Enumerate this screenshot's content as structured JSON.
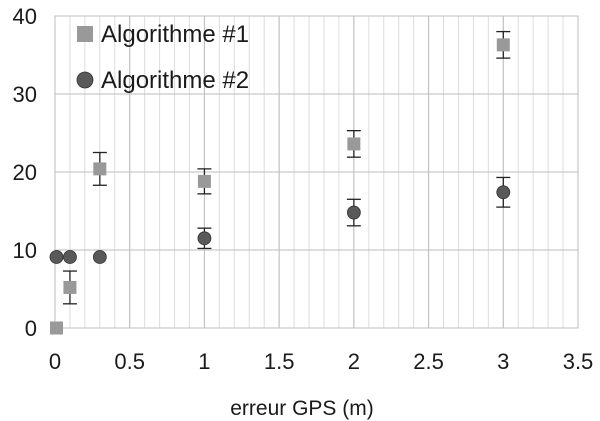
{
  "chart_data": {
    "type": "scatter",
    "title": "",
    "xlabel": "erreur GPS (m)",
    "ylabel": "",
    "xlim": [
      0,
      3.5
    ],
    "ylim": [
      0,
      40
    ],
    "x_ticks": [
      "0",
      "0.5",
      "1",
      "1.5",
      "2",
      "2.5",
      "3",
      "3.5"
    ],
    "y_ticks": [
      "0",
      "10",
      "20",
      "30",
      "40"
    ],
    "x_major_step": 0.5,
    "x_minor_step": 0.1,
    "y_major_step": 10,
    "grid": true,
    "legend_position": "top-left",
    "series": [
      {
        "name": "Algorithme #1",
        "marker": "square",
        "color": "#999999",
        "points": [
          {
            "x": 0.01,
            "y": 0,
            "err": null
          },
          {
            "x": 0.1,
            "y": 5.2,
            "err": 2.1
          },
          {
            "x": 0.3,
            "y": 20.4,
            "err": 2.1
          },
          {
            "x": 1,
            "y": 18.8,
            "err": 1.6
          },
          {
            "x": 2,
            "y": 23.6,
            "err": 1.7
          },
          {
            "x": 3,
            "y": 36.3,
            "err": 1.7
          }
        ]
      },
      {
        "name": "Algorithme #2",
        "marker": "circle",
        "color": "#595959",
        "points": [
          {
            "x": 0.01,
            "y": 9.1,
            "err": null
          },
          {
            "x": 0.1,
            "y": 9.1,
            "err": null
          },
          {
            "x": 0.3,
            "y": 9.1,
            "err": null
          },
          {
            "x": 1,
            "y": 11.5,
            "err": 1.3
          },
          {
            "x": 2,
            "y": 14.8,
            "err": 1.7
          },
          {
            "x": 3,
            "y": 17.4,
            "err": 1.9
          }
        ]
      }
    ]
  }
}
